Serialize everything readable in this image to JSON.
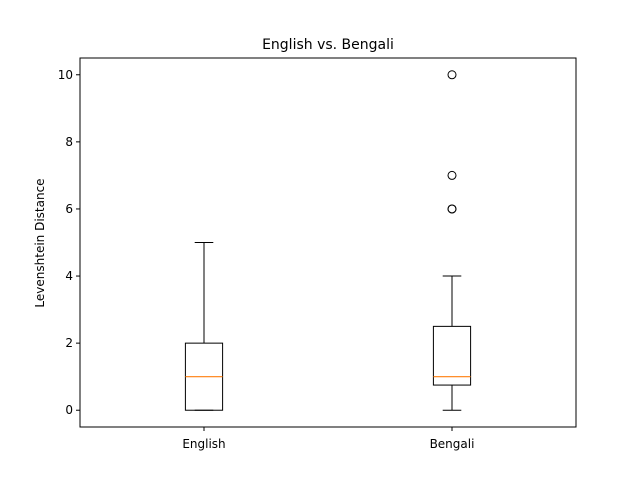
{
  "chart_data": {
    "type": "box",
    "title": "English vs. Bengali",
    "xlabel": "",
    "ylabel": "Levenshtein Distance",
    "ylim": [
      -0.5,
      10.5
    ],
    "yticks": [
      0,
      2,
      4,
      6,
      8,
      10
    ],
    "categories": [
      "English",
      "Bengali"
    ],
    "boxes": [
      {
        "label": "English",
        "whisker_low": 0,
        "q1": 0,
        "median": 1,
        "q3": 2,
        "whisker_high": 5,
        "outliers": []
      },
      {
        "label": "Bengali",
        "whisker_low": 0,
        "q1": 0.75,
        "median": 1,
        "q3": 2.5,
        "whisker_high": 4,
        "outliers": [
          6,
          6,
          7,
          10
        ]
      }
    ],
    "colors": {
      "box": "#000000",
      "median": "#ff7f0e",
      "outlier_edge": "#000000"
    },
    "grid": false
  }
}
